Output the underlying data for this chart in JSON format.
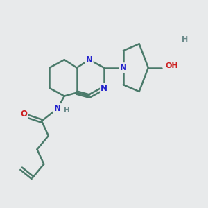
{
  "bg_color": "#e8eaeb",
  "bond_color": "#4a7a6a",
  "bond_width": 1.8,
  "atom_colors": {
    "N": "#2222cc",
    "O": "#cc2020",
    "C": "#4a7a6a",
    "H": "#6a8a8a"
  }
}
